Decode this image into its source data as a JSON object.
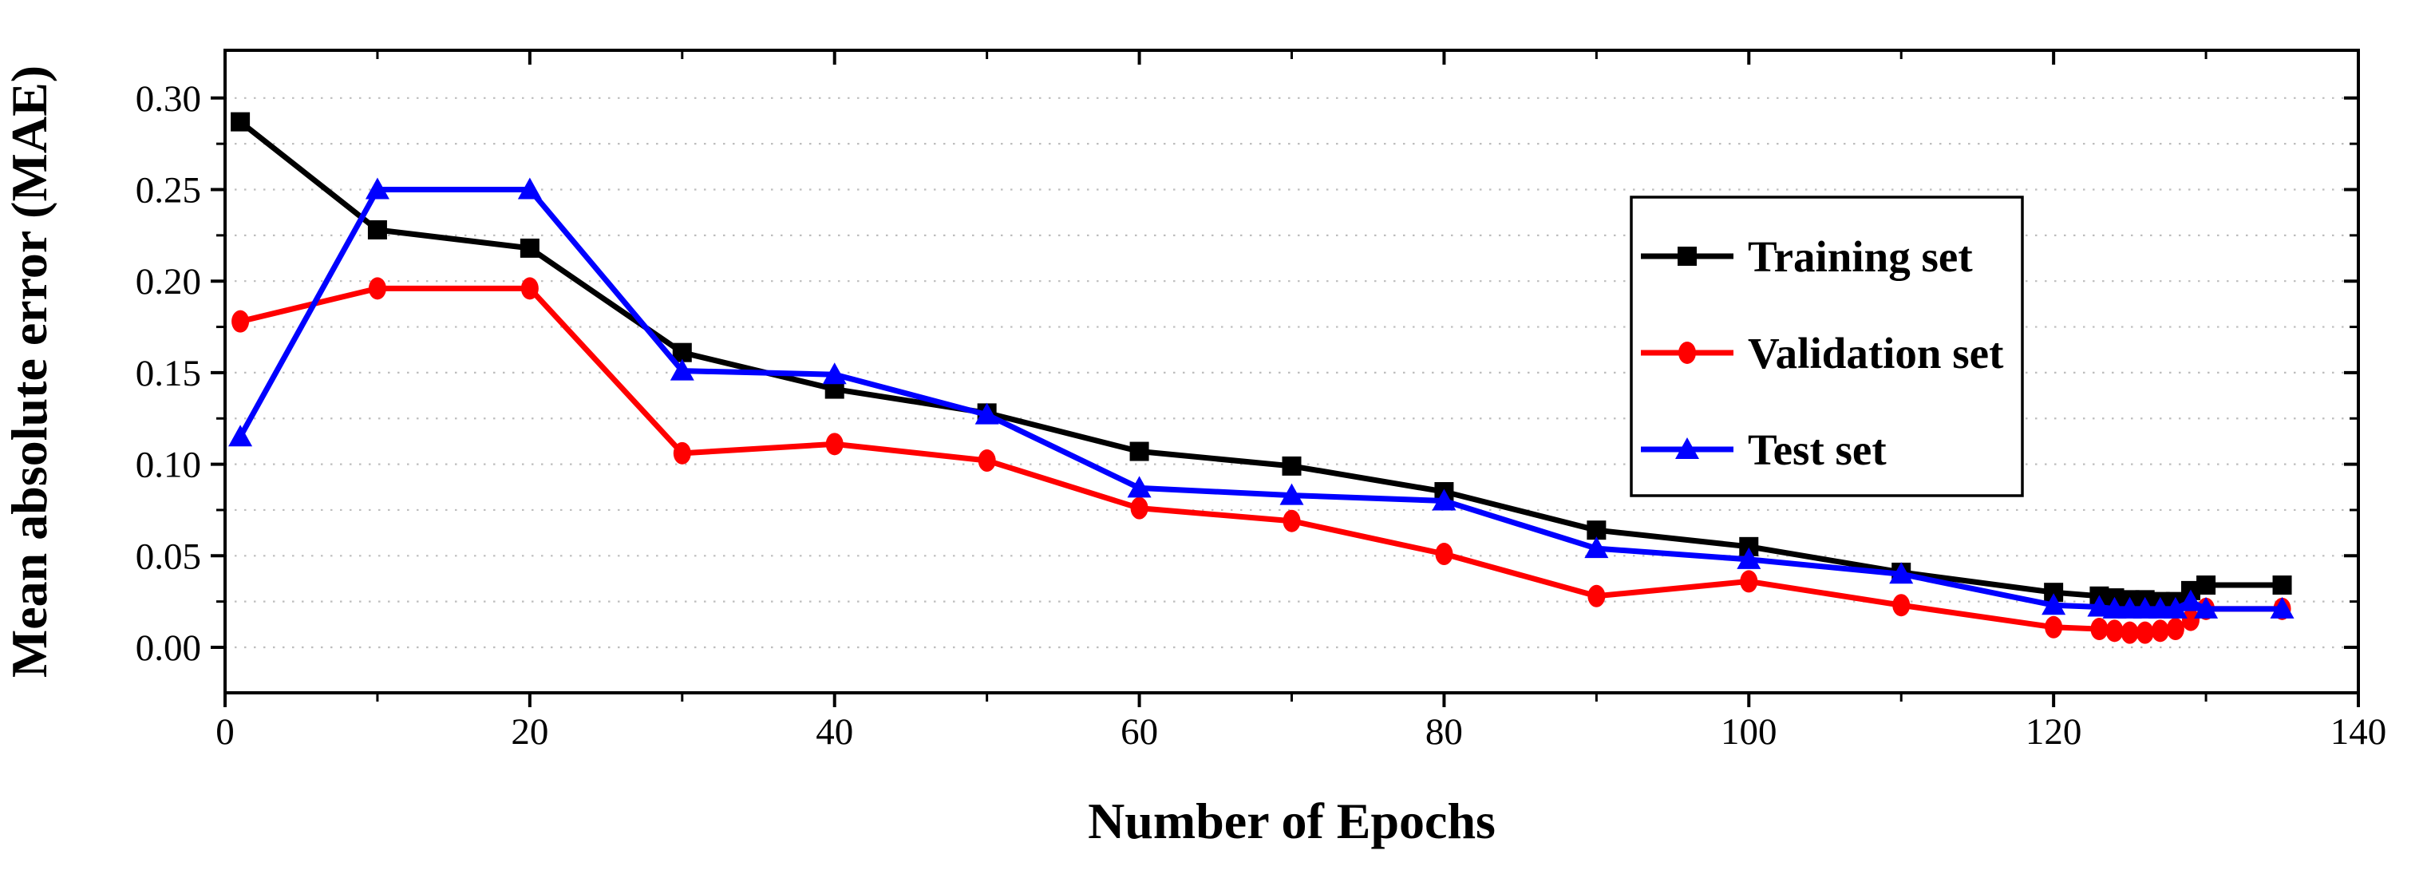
{
  "chart_data": {
    "type": "line",
    "title": "",
    "xlabel": "Number of Epochs",
    "ylabel": "Mean absolute error (MAE)",
    "xlim": [
      0,
      140
    ],
    "ylim": [
      -0.025,
      0.326
    ],
    "grid": "horizontal dotted lines every 0.025, light gray",
    "legend_position": "inside upper right",
    "x_tick_labels": [
      "0",
      "20",
      "40",
      "60",
      "80",
      "100",
      "120",
      "140"
    ],
    "x_major_ticks": [
      0,
      20,
      40,
      60,
      80,
      100,
      120,
      140
    ],
    "x_minor_ticks": [
      10,
      30,
      50,
      70,
      90,
      110,
      130
    ],
    "y_tick_labels": [
      "0.00",
      "0.05",
      "0.10",
      "0.15",
      "0.20",
      "0.25",
      "0.30"
    ],
    "y_major_ticks": [
      0.0,
      0.05,
      0.1,
      0.15,
      0.2,
      0.25,
      0.3
    ],
    "y_minor_ticks": [
      0.025,
      0.075,
      0.125,
      0.175,
      0.225,
      0.275
    ],
    "gridline_values": [
      0,
      0.025,
      0.05,
      0.075,
      0.1,
      0.125,
      0.15,
      0.175,
      0.2,
      0.225,
      0.25,
      0.275,
      0.3
    ],
    "colors": {
      "training": "#000000",
      "validation": "#ff0000",
      "test": "#0000ff",
      "grid": "#bdbdbd",
      "axis": "#000000"
    },
    "x": [
      1,
      10,
      20,
      30,
      40,
      50,
      60,
      70,
      80,
      90,
      100,
      110,
      120,
      123,
      124,
      125,
      126,
      127,
      128,
      129,
      130,
      135
    ],
    "series": [
      {
        "name": "Training set",
        "marker": "square",
        "color": "#000000",
        "values": [
          0.287,
          0.228,
          0.218,
          0.161,
          0.141,
          0.128,
          0.107,
          0.099,
          0.085,
          0.064,
          0.055,
          0.041,
          0.03,
          0.028,
          0.027,
          0.026,
          0.026,
          0.025,
          0.025,
          0.031,
          0.034,
          0.034
        ]
      },
      {
        "name": "Validation set",
        "marker": "circle",
        "color": "#ff0000",
        "values": [
          0.178,
          0.196,
          0.196,
          0.106,
          0.111,
          0.102,
          0.076,
          0.069,
          0.051,
          0.028,
          0.036,
          0.023,
          0.011,
          0.01,
          0.009,
          0.008,
          0.008,
          0.009,
          0.01,
          0.015,
          0.021,
          0.021
        ]
      },
      {
        "name": "Test set",
        "marker": "triangle",
        "color": "#0000ff",
        "values": [
          0.115,
          0.25,
          0.25,
          0.151,
          0.149,
          0.127,
          0.087,
          0.083,
          0.08,
          0.054,
          0.048,
          0.04,
          0.023,
          0.022,
          0.021,
          0.021,
          0.021,
          0.021,
          0.021,
          0.025,
          0.021,
          0.021
        ]
      }
    ]
  }
}
